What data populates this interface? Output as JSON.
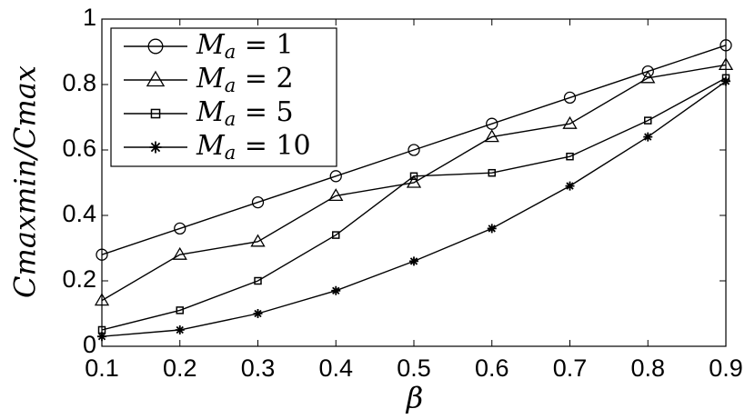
{
  "chart_data": {
    "type": "line",
    "xlabel": "β",
    "ylabel": "Cmaxmin/Cmax",
    "x": [
      0.1,
      0.2,
      0.3,
      0.4,
      0.5,
      0.6,
      0.7,
      0.8,
      0.9
    ],
    "series": [
      {
        "name": "Ma = 1",
        "color": "#000000",
        "marker": "circle",
        "values": [
          0.28,
          0.36,
          0.44,
          0.52,
          0.6,
          0.68,
          0.76,
          0.84,
          0.92
        ]
      },
      {
        "name": "Ma = 2",
        "color": "#000000",
        "marker": "triangle",
        "values": [
          0.14,
          0.28,
          0.32,
          0.46,
          0.5,
          0.64,
          0.68,
          0.82,
          0.86
        ]
      },
      {
        "name": "Ma = 5",
        "color": "#000000",
        "marker": "square",
        "values": [
          0.05,
          0.11,
          0.2,
          0.34,
          0.52,
          0.53,
          0.58,
          0.69,
          0.82
        ]
      },
      {
        "name": "Ma = 10",
        "color": "#000000",
        "marker": "star",
        "values": [
          0.03,
          0.05,
          0.1,
          0.17,
          0.26,
          0.36,
          0.49,
          0.64,
          0.81
        ]
      }
    ],
    "xlim": [
      0.1,
      0.9
    ],
    "xticks": [
      0.1,
      0.2,
      0.3,
      0.4,
      0.5,
      0.6,
      0.7,
      0.8,
      0.9
    ],
    "ylim": [
      0,
      1
    ],
    "yticks": [
      0,
      0.2,
      0.4,
      0.6,
      0.8,
      1
    ],
    "grid": false,
    "legend": "upper left"
  }
}
